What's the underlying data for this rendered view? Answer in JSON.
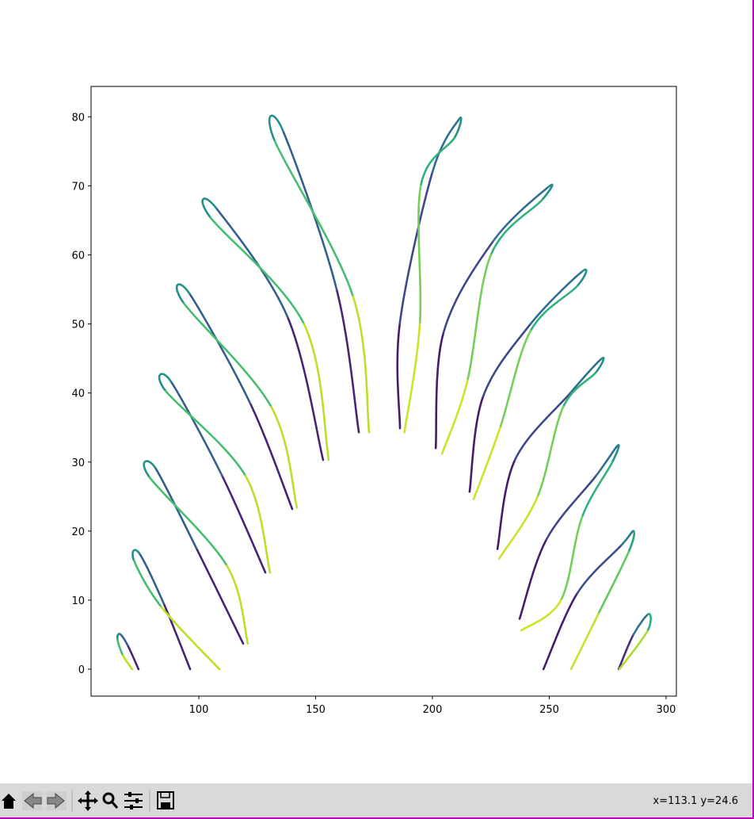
{
  "chart_data": {
    "type": "line",
    "colormap": "viridis",
    "xlim": [
      53.9,
      304.4
    ],
    "ylim": [
      -3.9,
      84.4
    ],
    "xticks": [
      100,
      150,
      200,
      250,
      300
    ],
    "yticks": [
      0,
      10,
      20,
      30,
      40,
      50,
      60,
      70,
      80
    ],
    "series": [
      {
        "x": [
          74.2,
          69.5,
          66.2,
          65.2,
          67.5,
          71.5
        ],
        "y": [
          0,
          3.5,
          5.1,
          4.3,
          2,
          0
        ]
      },
      {
        "x": [
          96.3,
          85,
          74.5,
          72.3,
          84,
          108.8
        ],
        "y": [
          0,
          9.5,
          16.8,
          15.7,
          9,
          0
        ]
      },
      {
        "x": [
          119,
          99,
          81.3,
          78.9,
          112,
          121
        ],
        "y": [
          3.7,
          17.5,
          29.2,
          27.8,
          15,
          3.7
        ]
      },
      {
        "x": [
          128.5,
          110,
          88,
          85.8,
          120,
          130.5
        ],
        "y": [
          14,
          28,
          41.7,
          40.3,
          28,
          14
        ]
      },
      {
        "x": [
          140,
          122,
          96,
          93.6,
          131,
          142
        ],
        "y": [
          23.2,
          38.5,
          54.4,
          53,
          38,
          23.4
        ]
      },
      {
        "x": [
          153.2,
          138,
          107.4,
          105,
          145,
          155.6
        ],
        "y": [
          30.3,
          51,
          66.8,
          65.4,
          50,
          30.3
        ]
      },
      {
        "x": [
          168.5,
          159,
          136,
          132.5,
          166,
          172.9
        ],
        "y": [
          34.3,
          55,
          78,
          76.5,
          54,
          34.3
        ]
      },
      {
        "x": [
          186.1,
          186,
          200,
          211.5,
          209.5,
          195,
          194.6,
          188
        ],
        "y": [
          34.9,
          50,
          72,
          79.7,
          77,
          70,
          50,
          34.3
        ]
      },
      {
        "x": [
          201.4,
          204.7,
          226,
          249.5,
          247,
          225,
          215,
          204.1
        ],
        "y": [
          32,
          48.7,
          62,
          69.8,
          68,
          60,
          41.8,
          31.2
        ]
      },
      {
        "x": [
          215.9,
          221.7,
          242,
          264.1,
          262,
          242,
          229,
          217.6
        ],
        "y": [
          25.7,
          39.5,
          50,
          57.6,
          55.5,
          49,
          35,
          24.6
        ]
      },
      {
        "x": [
          227.8,
          235.3,
          259,
          272.5,
          270,
          256,
          245,
          228.5
        ],
        "y": [
          17.4,
          30.3,
          40,
          45,
          43,
          38,
          25,
          16
        ]
      },
      {
        "x": [
          237.3,
          248.8,
          270,
          279.3,
          277,
          264,
          255,
          238
        ],
        "y": [
          7.3,
          18.8,
          28,
          32.4,
          30,
          22,
          10,
          5.6
        ]
      },
      {
        "x": [
          247.5,
          262,
          281,
          286.1,
          284,
          271,
          259.3
        ],
        "y": [
          0,
          11,
          18,
          20,
          17,
          8,
          0
        ]
      },
      {
        "x": [
          279.7,
          286,
          292.6,
          292,
          280
        ],
        "y": [
          0,
          5,
          8,
          5.5,
          0
        ]
      }
    ]
  },
  "toolbar": {
    "status": "x=113.1 y=24.6"
  }
}
